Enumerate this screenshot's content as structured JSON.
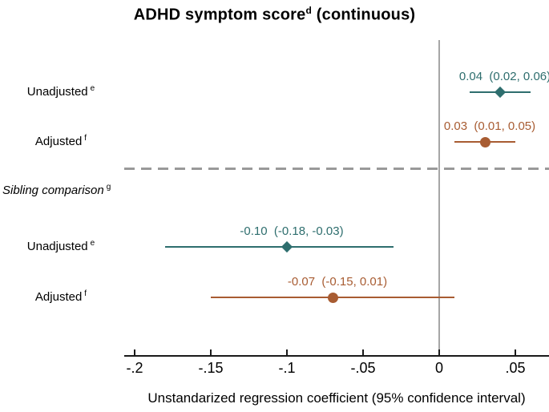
{
  "colors": {
    "teal": "#2e6e6e",
    "brown": "#a85c32",
    "zero_line": "#a6a6a6",
    "dashed_line": "#999999",
    "axis": "#1a1a1a"
  },
  "chart_data": {
    "type": "forest",
    "title": {
      "text": "ADHD symptom score",
      "sup": "d",
      "suffix": " (continuous)"
    },
    "xlabel": "Unstandarized regression coefficient (95% confidence interval)",
    "section": {
      "label": "Sibling comparison",
      "sup": "g"
    },
    "xlim": [
      -0.207,
      0.072
    ],
    "grid": false,
    "xticks": [
      {
        "value": -0.2,
        "label": "-.2"
      },
      {
        "value": -0.15,
        "label": "-.15"
      },
      {
        "value": -0.1,
        "label": "-.1"
      },
      {
        "value": -0.05,
        "label": "-.05"
      },
      {
        "value": 0,
        "label": "0"
      },
      {
        "value": 0.05,
        "label": ".05"
      }
    ],
    "rows": [
      {
        "label": "Unadjusted",
        "sup": "e",
        "estimate": 0.04,
        "ci_low": 0.02,
        "ci_high": 0.06,
        "display": "0.04  (0.02, 0.06)",
        "marker": "diamond",
        "color": "teal"
      },
      {
        "label": "Adjusted",
        "sup": "f",
        "estimate": 0.03,
        "ci_low": 0.01,
        "ci_high": 0.05,
        "display": "0.03  (0.01, 0.05)",
        "marker": "circle",
        "color": "brown"
      },
      {
        "label": "Unadjusted",
        "sup": "e",
        "estimate": -0.1,
        "ci_low": -0.18,
        "ci_high": -0.03,
        "display": "-0.10  (-0.18, -0.03)",
        "marker": "diamond",
        "color": "teal"
      },
      {
        "label": "Adjusted",
        "sup": "f",
        "estimate": -0.07,
        "ci_low": -0.15,
        "ci_high": 0.01,
        "display": "-0.07  (-0.15, 0.01)",
        "marker": "circle",
        "color": "brown"
      }
    ]
  }
}
